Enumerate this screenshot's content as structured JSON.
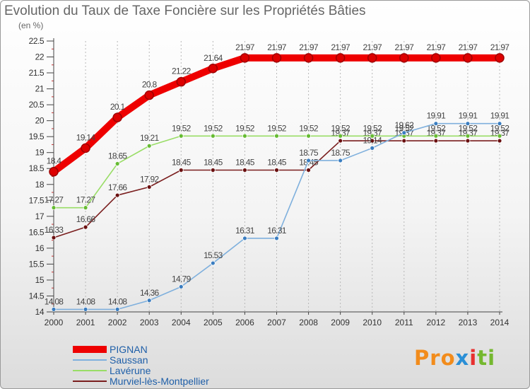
{
  "header": {
    "title": "Evolution du Taux de Taxe Foncière sur les Propriétés Bâties",
    "unit": "(en %)"
  },
  "logo": {
    "letters": [
      "P",
      "r",
      "o",
      "x",
      "i",
      "t",
      "i"
    ],
    "colors": [
      "#f28c1c",
      "#f28c1c",
      "#f28c1c",
      "#2a8fd6",
      "#e8302f",
      "#75b82f",
      "#75b82f"
    ]
  },
  "chart_data": {
    "type": "line",
    "title": "Evolution du Taux de Taxe Foncière sur les Propriétés Bâties",
    "ylabel": "(en %)",
    "xlabel": "",
    "x": [
      2000,
      2001,
      2002,
      2003,
      2004,
      2005,
      2006,
      2007,
      2008,
      2009,
      2010,
      2011,
      2012,
      2013,
      2014
    ],
    "ylim": [
      14,
      22.5
    ],
    "yticks": [
      14,
      14.5,
      15,
      15.5,
      16,
      16.5,
      17,
      17.5,
      18,
      18.5,
      19,
      19.5,
      20,
      20.5,
      21,
      21.5,
      22,
      22.5
    ],
    "yticklabels": [
      "14",
      "14.5",
      "15",
      "15.5",
      "16",
      "16.5",
      "17",
      "17.5",
      "18",
      "18.5",
      "19",
      "19.5",
      "20",
      "20.5",
      "21",
      "21.5",
      "22",
      "22.5"
    ],
    "legend_position": "bottom-left",
    "series": [
      {
        "name": "Murviel-lès-Montpellier",
        "color": "#7a1e1e",
        "marker": "#6a1010",
        "values": [
          16.33,
          16.66,
          17.66,
          17.92,
          18.45,
          18.45,
          18.45,
          18.45,
          18.45,
          19.37,
          19.37,
          19.37,
          19.37,
          19.37,
          19.37
        ],
        "labels": [
          "16.33",
          "16.66",
          "17.66",
          "17.92",
          "18.45",
          "18.45",
          "18.45",
          "18.45",
          "18.45",
          "19.37",
          "19.37",
          "19.37",
          "19.37",
          "19.37",
          "19.37"
        ]
      },
      {
        "name": "Lavérune",
        "color": "#99dd66",
        "marker": "#66bb33",
        "values": [
          17.27,
          17.27,
          18.65,
          19.21,
          19.52,
          19.52,
          19.52,
          19.52,
          19.52,
          19.52,
          19.52,
          19.52,
          19.52,
          19.52,
          19.52
        ],
        "labels": [
          "17.27",
          "17.27",
          "18.65",
          "19.21",
          "19.52",
          "19.52",
          "19.52",
          "19.52",
          "19.52",
          "19.52",
          "19.52",
          "19.52",
          "19.52",
          "19.52",
          "19.52"
        ]
      },
      {
        "name": "Saussan",
        "color": "#7fb0dd",
        "marker": "#3a7dc0",
        "values": [
          14.08,
          14.08,
          14.08,
          14.36,
          14.79,
          15.53,
          16.31,
          16.31,
          18.75,
          18.75,
          19.14,
          19.62,
          19.91,
          19.91,
          19.91
        ],
        "labels": [
          "14.08",
          "14.08",
          "14.08",
          "14.36",
          "14.79",
          "15.53",
          "16.31",
          "16.31",
          "18.75",
          "18.75",
          "19.14",
          "19.62",
          "19.91",
          "19.91",
          "19.91"
        ]
      },
      {
        "name": "PIGNAN",
        "color": "#ee0000",
        "marker": "#dd0000",
        "bold": true,
        "values": [
          18.4,
          19.14,
          20.1,
          20.8,
          21.22,
          21.64,
          21.97,
          21.97,
          21.97,
          21.97,
          21.97,
          21.97,
          21.97,
          21.97,
          21.97
        ],
        "labels": [
          "18.4",
          "19.14",
          "20.1",
          "20.8",
          "21.22",
          "21.64",
          "21.97",
          "21.97",
          "21.97",
          "21.97",
          "21.97",
          "21.97",
          "21.97",
          "21.97",
          "21.97"
        ]
      }
    ]
  }
}
